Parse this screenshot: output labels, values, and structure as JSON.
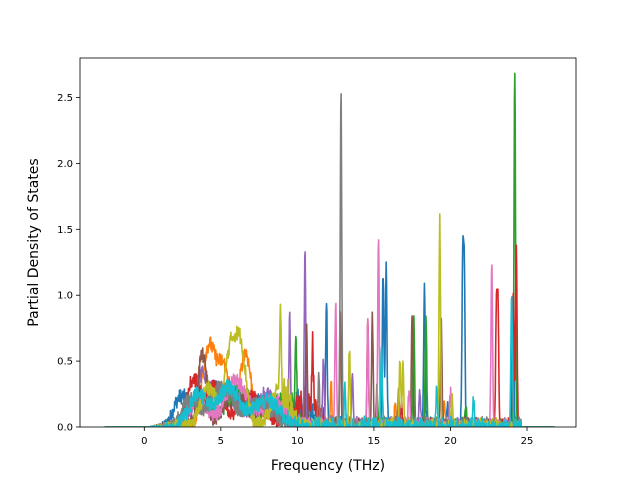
{
  "chart_data": {
    "type": "line",
    "title": "",
    "xlabel": "Frequency (THz)",
    "ylabel": "Partial Density of States",
    "xlim": [
      -4.2,
      28.2
    ],
    "ylim": [
      0.0,
      2.8
    ],
    "xticks": [
      0,
      5,
      10,
      15,
      20,
      25
    ],
    "xtick_labels": [
      "0",
      "5",
      "10",
      "15",
      "20",
      "25"
    ],
    "yticks": [
      0.0,
      0.5,
      1.0,
      1.5,
      2.0,
      2.5
    ],
    "ytick_labels": [
      "0.0",
      "0.5",
      "1.0",
      "1.5",
      "2.0",
      "2.5"
    ],
    "grid": false,
    "legend": "none",
    "x_range": [
      -2.6,
      26.8
    ],
    "series_colors": [
      "#1f77b4",
      "#ff7f0e",
      "#2ca02c",
      "#d62728",
      "#9467bd",
      "#8c564b",
      "#e377c2",
      "#7f7f7f",
      "#bcbd22",
      "#17becf"
    ],
    "series": [
      {
        "color": "#1f77b4",
        "broad": [
          [
            2.4,
            0.22,
            0.8
          ],
          [
            4.5,
            0.28,
            1.2
          ],
          [
            7.0,
            0.2,
            1.5
          ],
          [
            10.0,
            0.15,
            1.5
          ]
        ],
        "peaks": [
          [
            11.9,
            0.9
          ],
          [
            15.6,
            1.2
          ],
          [
            15.8,
            1.28
          ],
          [
            18.3,
            1.06
          ],
          [
            20.8,
            1.22
          ],
          [
            20.9,
            1.21
          ],
          [
            24.1,
            0.96
          ],
          [
            19.8,
            0.18
          ]
        ]
      },
      {
        "color": "#ff7f0e",
        "broad": [
          [
            4.2,
            0.6,
            0.6
          ],
          [
            5.2,
            0.45,
            0.6
          ],
          [
            6.6,
            0.55,
            0.5
          ],
          [
            8.5,
            0.2,
            1.2
          ]
        ],
        "peaks": [
          [
            10.6,
            0.2
          ],
          [
            12.2,
            0.35
          ],
          [
            16.4,
            0.18
          ],
          [
            19.6,
            0.2
          ]
        ]
      },
      {
        "color": "#2ca02c",
        "broad": [
          [
            3.6,
            0.25,
            0.9
          ],
          [
            6.2,
            0.28,
            1.2
          ],
          [
            9.0,
            0.2,
            1.2
          ]
        ],
        "peaks": [
          [
            9.9,
            0.6
          ],
          [
            15.2,
            0.3
          ],
          [
            17.6,
            0.88
          ],
          [
            18.4,
            0.88
          ],
          [
            24.2,
            2.7
          ],
          [
            21.0,
            0.2
          ]
        ]
      },
      {
        "color": "#d62728",
        "broad": [
          [
            3.2,
            0.35,
            0.6
          ],
          [
            4.6,
            0.3,
            0.8
          ],
          [
            7.0,
            0.22,
            1.2
          ],
          [
            10.5,
            0.2,
            1.2
          ]
        ],
        "peaks": [
          [
            11.0,
            0.45
          ],
          [
            14.6,
            0.8
          ],
          [
            16.8,
            0.2
          ],
          [
            23.0,
            0.88
          ],
          [
            23.1,
            0.91
          ],
          [
            24.1,
            1.06
          ],
          [
            24.3,
            1.38
          ]
        ]
      },
      {
        "color": "#9467bd",
        "broad": [
          [
            3.8,
            0.4,
            0.7
          ],
          [
            5.5,
            0.3,
            0.9
          ],
          [
            8.0,
            0.25,
            1.2
          ]
        ],
        "peaks": [
          [
            9.5,
            0.8
          ],
          [
            10.5,
            1.31
          ],
          [
            11.7,
            0.55
          ],
          [
            13.6,
            0.4
          ],
          [
            18.0,
            0.25
          ]
        ]
      },
      {
        "color": "#8c564b",
        "broad": [
          [
            3.8,
            0.55,
            0.4
          ],
          [
            5.8,
            0.25,
            1.0
          ],
          [
            8.2,
            0.18,
            1.2
          ]
        ],
        "peaks": [
          [
            10.6,
            0.78
          ],
          [
            12.8,
            0.9
          ],
          [
            14.9,
            0.85
          ],
          [
            17.5,
            0.9
          ],
          [
            19.4,
            0.82
          ]
        ]
      },
      {
        "color": "#e377c2",
        "broad": [
          [
            3.5,
            0.2,
            0.9
          ],
          [
            6.0,
            0.35,
            1.0
          ],
          [
            8.5,
            0.2,
            1.2
          ]
        ],
        "peaks": [
          [
            12.5,
            0.93
          ],
          [
            14.6,
            0.78
          ],
          [
            15.3,
            1.43
          ],
          [
            17.3,
            0.3
          ],
          [
            22.7,
            1.27
          ],
          [
            20.0,
            0.25
          ]
        ]
      },
      {
        "color": "#7f7f7f",
        "broad": [
          [
            3.0,
            0.2,
            0.8
          ],
          [
            5.0,
            0.3,
            1.0
          ],
          [
            7.5,
            0.2,
            1.2
          ]
        ],
        "peaks": [
          [
            12.85,
            2.53
          ],
          [
            11.4,
            0.4
          ],
          [
            16.6,
            0.25
          ]
        ]
      },
      {
        "color": "#bcbd22",
        "broad": [
          [
            5.6,
            0.55,
            0.5
          ],
          [
            6.3,
            0.6,
            0.5
          ],
          [
            4.2,
            0.3,
            0.7
          ],
          [
            8.9,
            0.3,
            0.8
          ]
        ],
        "peaks": [
          [
            8.9,
            0.6
          ],
          [
            13.4,
            0.6
          ],
          [
            16.7,
            0.5
          ],
          [
            16.9,
            0.48
          ],
          [
            19.3,
            1.57
          ],
          [
            20.1,
            0.25
          ]
        ]
      },
      {
        "color": "#17becf",
        "broad": [
          [
            3.5,
            0.25,
            0.8
          ],
          [
            5.5,
            0.3,
            1.0
          ],
          [
            8.0,
            0.2,
            1.2
          ]
        ],
        "peaks": [
          [
            13.1,
            0.3
          ],
          [
            15.5,
            0.6
          ],
          [
            19.1,
            0.3
          ],
          [
            24.0,
            1.03
          ],
          [
            21.5,
            0.2
          ]
        ]
      }
    ]
  }
}
